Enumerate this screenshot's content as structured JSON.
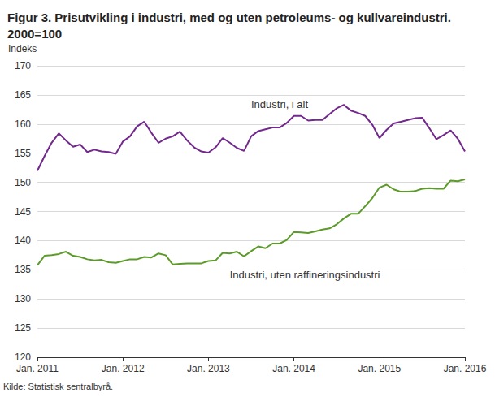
{
  "chart_data": {
    "type": "line",
    "title": "Figur 3. Prisutvikling i industri, med og uten petroleums- og kullvareindustri.\n2000=100",
    "y_label": "Indeks",
    "source": "Kilde: Statistisk sentralbyrå.",
    "categories": [
      "Jan. 2011",
      null,
      null,
      null,
      null,
      null,
      null,
      null,
      null,
      null,
      null,
      null,
      "Jan. 2012",
      null,
      null,
      null,
      null,
      null,
      null,
      null,
      null,
      null,
      null,
      null,
      "Jan. 2013",
      null,
      null,
      null,
      null,
      null,
      null,
      null,
      null,
      null,
      null,
      null,
      "Jan. 2014",
      null,
      null,
      null,
      null,
      null,
      null,
      null,
      null,
      null,
      null,
      null,
      "Jan. 2015",
      null,
      null,
      null,
      null,
      null,
      null,
      null,
      null,
      null,
      null,
      null,
      "Jan. 2016"
    ],
    "series": [
      {
        "name": "Industri, i alt",
        "color": "#72288c",
        "values": [
          152.0,
          154.5,
          156.8,
          158.4,
          157.2,
          156.1,
          156.5,
          155.2,
          155.6,
          155.3,
          155.2,
          154.9,
          157.0,
          157.9,
          159.6,
          160.4,
          158.5,
          156.8,
          157.5,
          157.9,
          158.7,
          157.2,
          156.0,
          155.3,
          155.1,
          156.0,
          157.6,
          156.8,
          155.9,
          155.4,
          157.9,
          158.8,
          159.1,
          159.4,
          159.4,
          160.2,
          161.4,
          161.4,
          160.6,
          160.7,
          160.7,
          161.7,
          162.7,
          163.3,
          162.3,
          161.9,
          161.4,
          159.9,
          157.6,
          159.0,
          160.1,
          160.4,
          160.7,
          161.0,
          161.1,
          159.3,
          157.4,
          158.1,
          158.9,
          157.5,
          155.3
        ]
      },
      {
        "name": "Industri, uten raffineringsindustri",
        "color": "#5c9b2a",
        "values": [
          135.8,
          137.4,
          137.5,
          137.7,
          138.1,
          137.4,
          137.2,
          136.8,
          136.6,
          136.7,
          136.3,
          136.2,
          136.5,
          136.8,
          136.8,
          137.2,
          137.1,
          137.8,
          137.5,
          135.9,
          136.0,
          136.1,
          136.1,
          136.1,
          136.5,
          136.6,
          137.9,
          137.8,
          138.1,
          137.3,
          138.2,
          139.0,
          138.7,
          139.5,
          139.5,
          140.1,
          141.5,
          141.4,
          141.3,
          141.6,
          141.9,
          142.1,
          142.8,
          143.8,
          144.6,
          144.6,
          145.9,
          147.3,
          149.1,
          149.6,
          148.8,
          148.4,
          148.4,
          148.5,
          148.9,
          149.0,
          148.9,
          148.9,
          150.3,
          150.2,
          150.5
        ]
      }
    ],
    "ylim": [
      120,
      170
    ],
    "yticks": [
      120,
      125,
      130,
      135,
      140,
      145,
      150,
      155,
      160,
      165,
      170
    ],
    "grid": true
  }
}
